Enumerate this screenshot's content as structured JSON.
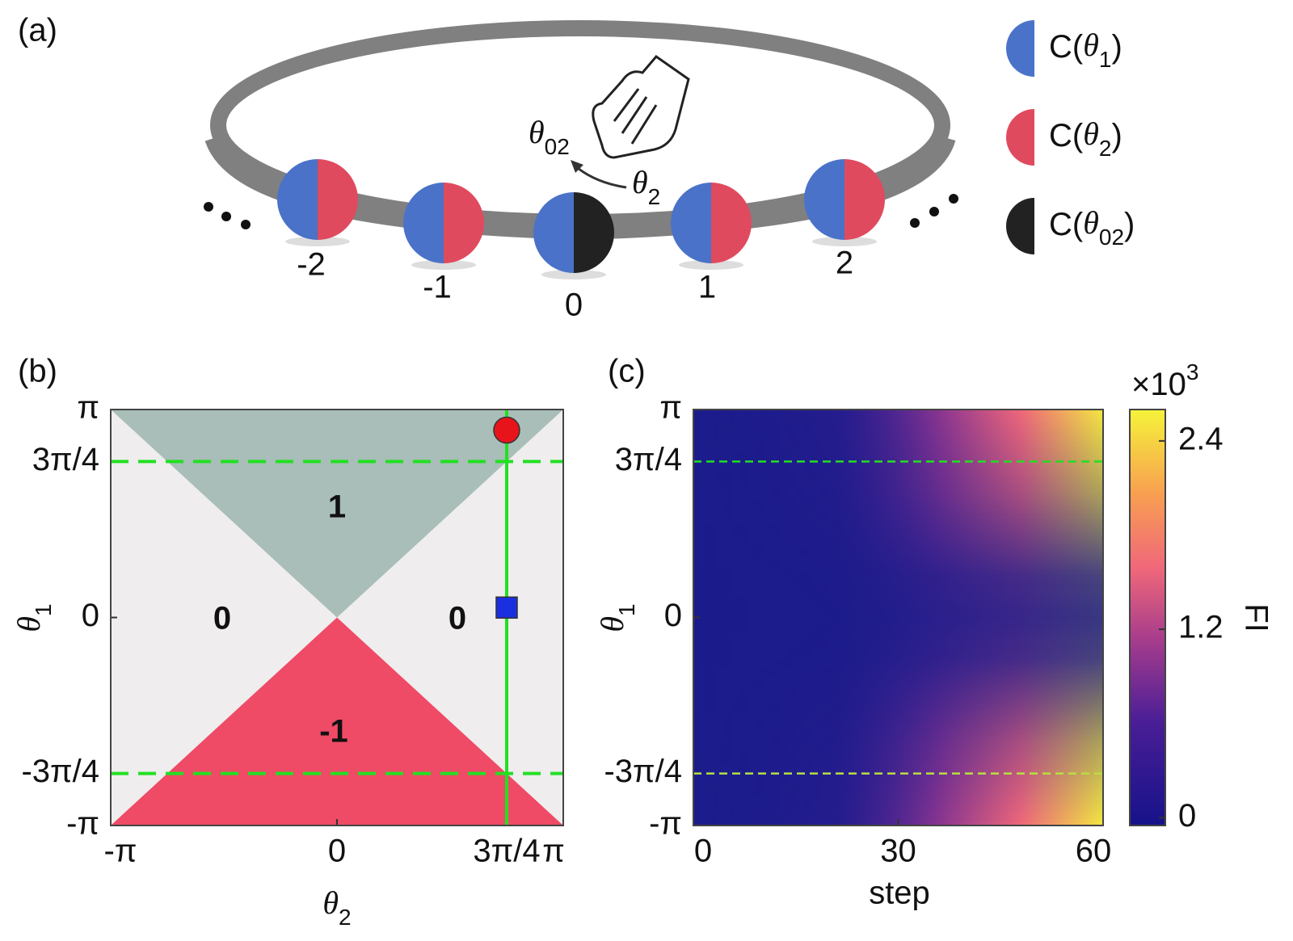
{
  "panel_a": {
    "label": "(a)",
    "sites": [
      "-2",
      "-1",
      "0",
      "1",
      "2"
    ],
    "theta02": [
      "θ",
      "02"
    ],
    "theta2": [
      "θ",
      "2"
    ],
    "legend": [
      [
        "C(",
        "θ",
        "1",
        ")"
      ],
      [
        "C(",
        "θ",
        "2",
        ")"
      ],
      [
        "C(",
        "θ",
        "02",
        ")"
      ]
    ]
  },
  "panel_b": {
    "label": "(b)",
    "xlim": [
      -3.14159,
      3.14159
    ],
    "ylim": [
      -3.14159,
      3.14159
    ],
    "xticks": [
      {
        "value": -3.14159,
        "label": "-π"
      },
      0,
      {
        "value": 2.35619,
        "label": "3π/4"
      },
      {
        "value": 3.14159,
        "label": "π"
      }
    ],
    "yticks": [
      {
        "value": 3.14159,
        "label": "π"
      },
      {
        "value": 2.35619,
        "label": "3π/4"
      },
      0,
      {
        "value": -2.35619,
        "label": "-3π/4"
      },
      {
        "value": -3.14159,
        "label": "-π"
      }
    ],
    "xlabel": [
      "θ",
      "2"
    ],
    "ylabel": [
      "θ",
      "1"
    ],
    "regions": [
      "1",
      "0",
      "0",
      "-1"
    ],
    "dashed_y": [
      2.35619,
      -2.35619
    ],
    "solid_x": 2.35619,
    "markers": [
      {
        "shape": "circle",
        "color": "#e8141c",
        "x": 2.35619,
        "y": 2.83
      },
      {
        "shape": "square",
        "color": "#1a2fe0",
        "x": 2.35619,
        "y": 0.15
      }
    ]
  },
  "panel_c": {
    "label": "(c)",
    "xlim": [
      0,
      60
    ],
    "xticks": [
      0,
      30,
      60
    ],
    "ylim": [
      -3.14159,
      3.14159
    ],
    "yticks": [
      {
        "value": 3.14159,
        "label": "π"
      },
      {
        "value": 2.35619,
        "label": "3π/4"
      },
      0,
      {
        "value": -2.35619,
        "label": "-3π/4"
      },
      {
        "value": -3.14159,
        "label": "-π"
      }
    ],
    "xlabel": "step",
    "ylabel": [
      "θ",
      "1"
    ],
    "dashed_y": [
      2.35619,
      -2.35619
    ],
    "colorbar": {
      "lim": [
        -0.05,
        2.6
      ],
      "ticks": [
        0,
        1.2,
        2.4
      ],
      "label": "FI",
      "scale": [
        "×10",
        "3"
      ]
    }
  }
}
